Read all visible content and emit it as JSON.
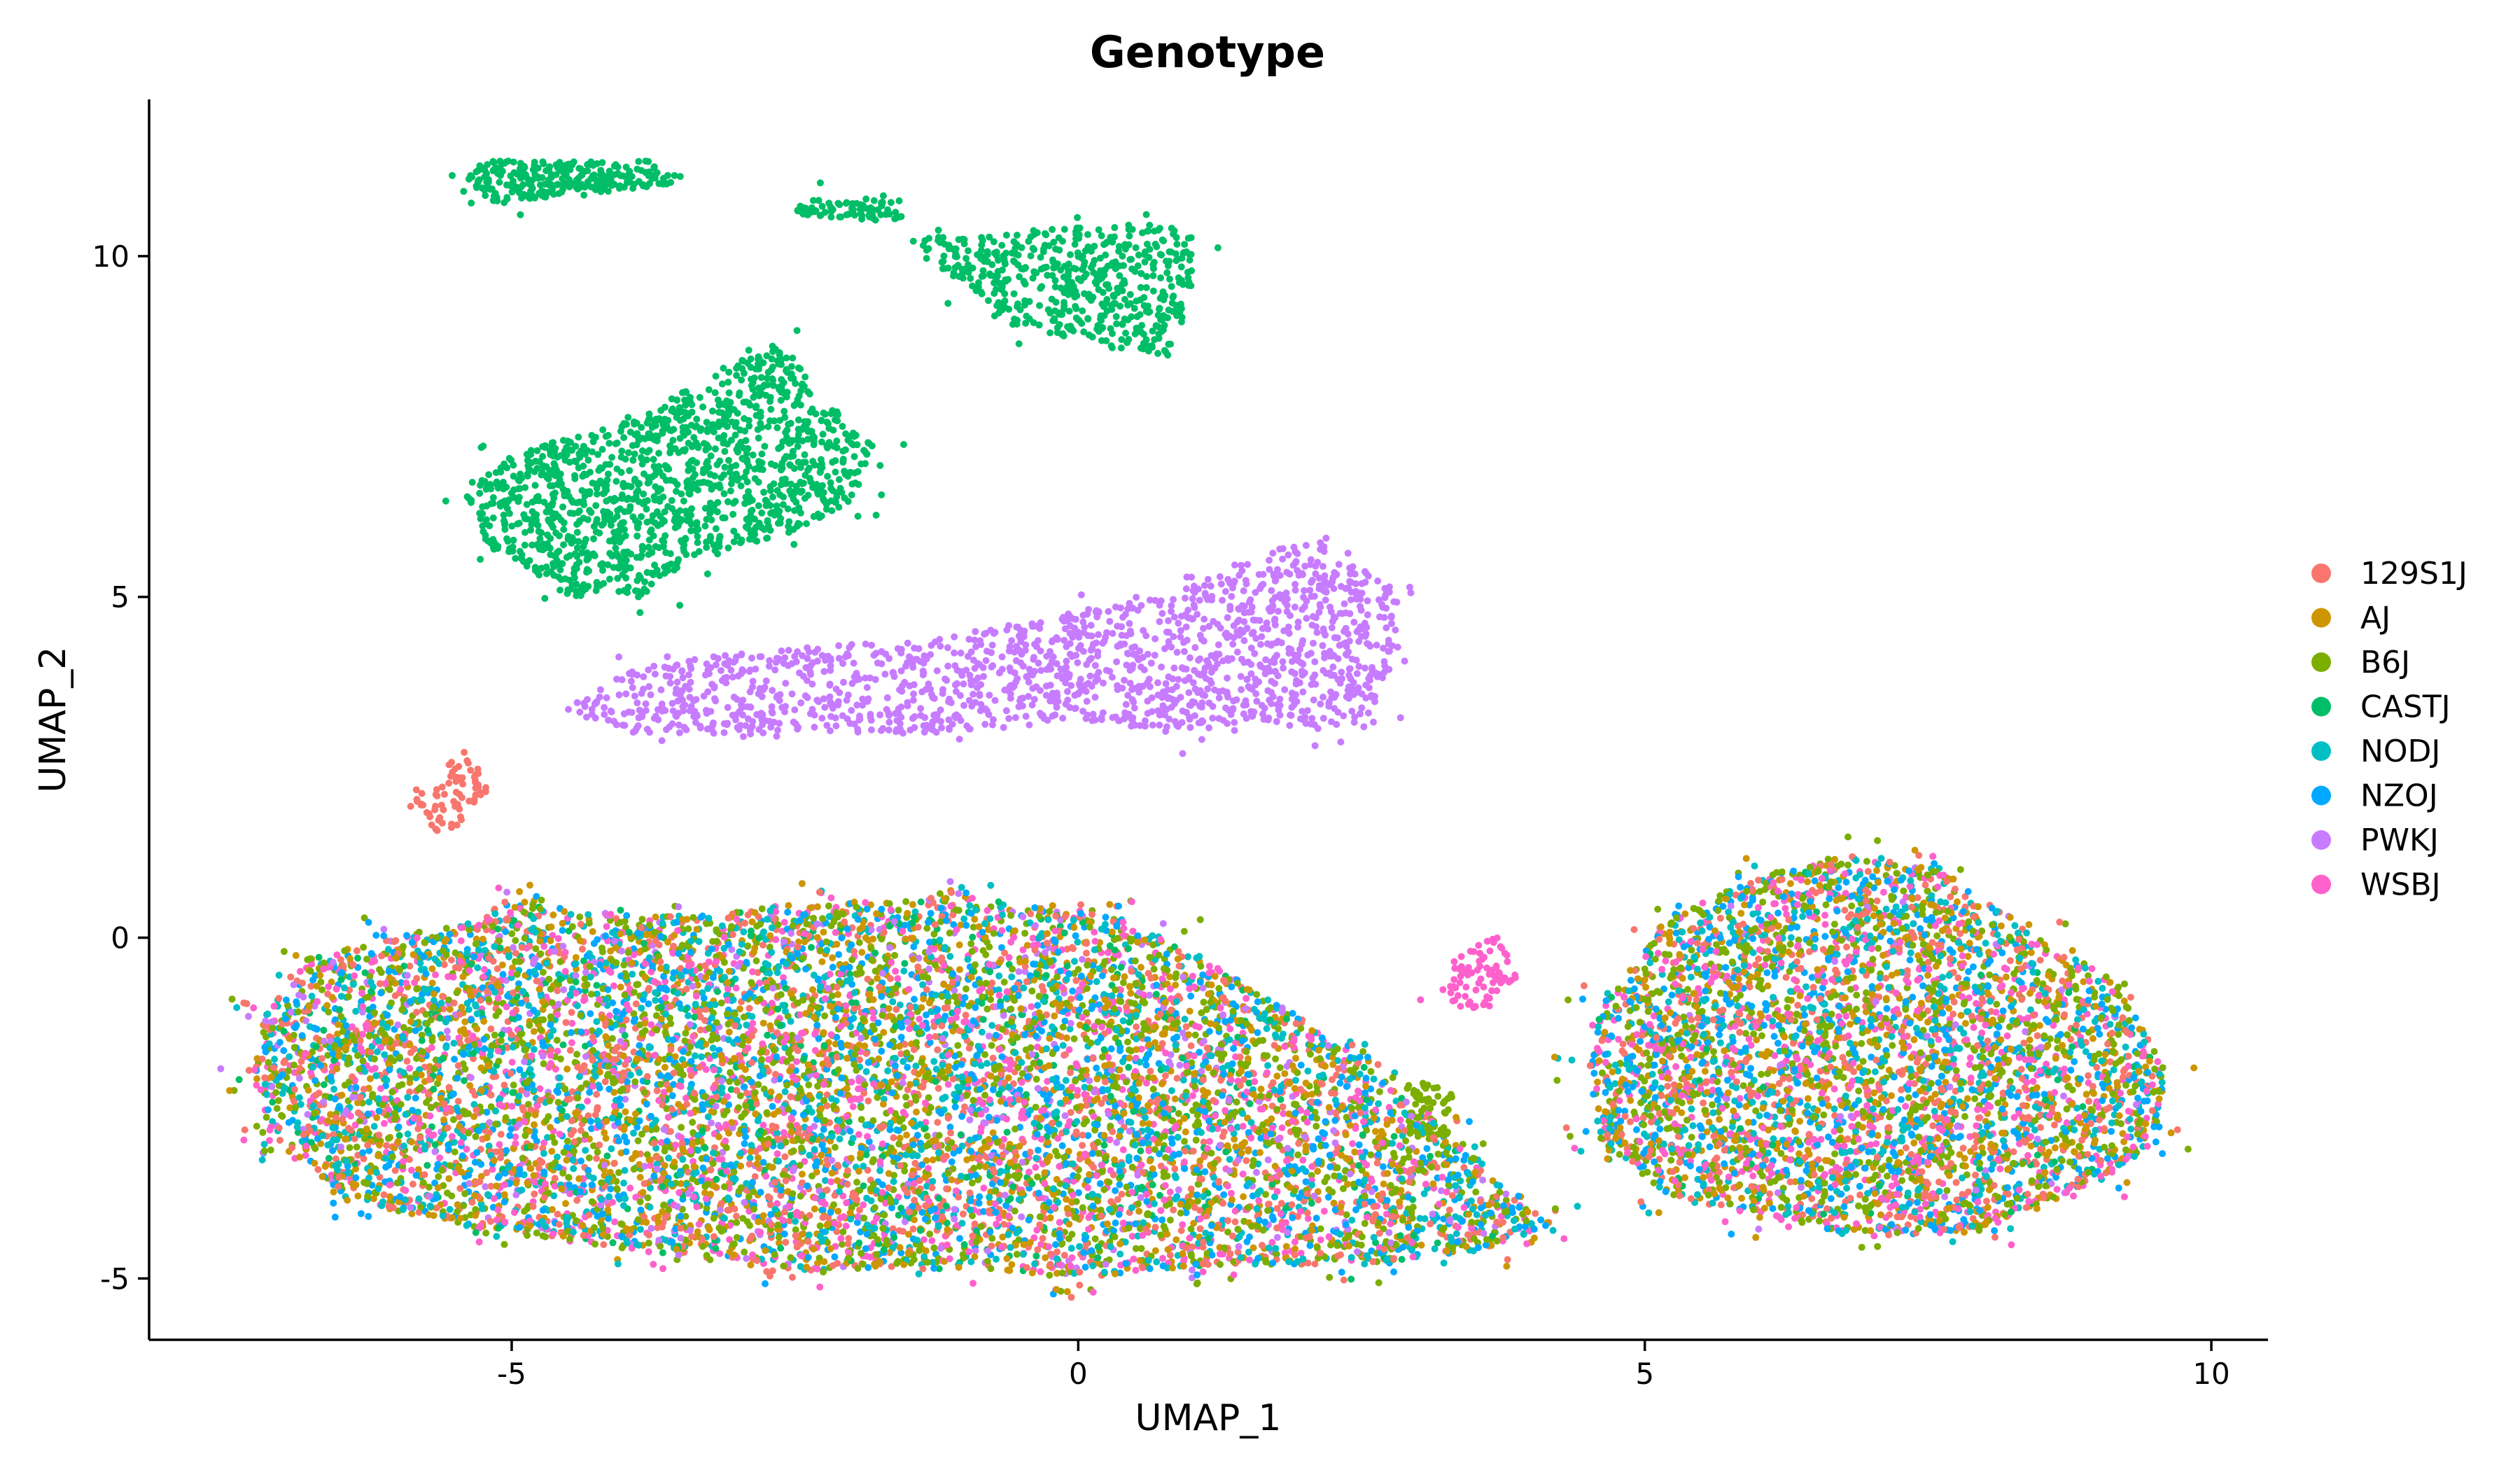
{
  "chart_data": {
    "type": "scatter",
    "title": "Genotype",
    "xlabel": "UMAP_1",
    "ylabel": "UMAP_2",
    "xlim": [
      -8.2,
      10.5
    ],
    "ylim": [
      -5.9,
      12.3
    ],
    "xticks": [
      -5,
      0,
      5,
      10
    ],
    "xtick_labels": [
      "-5",
      "0",
      "5",
      "10"
    ],
    "yticks": [
      -5,
      0,
      5,
      10
    ],
    "ytick_labels": [
      "-5",
      "0",
      "5",
      "10"
    ],
    "grid": false,
    "legend_position": "right",
    "series": [
      {
        "name": "129S1J",
        "color": "#F8766D"
      },
      {
        "name": "AJ",
        "color": "#CD9600"
      },
      {
        "name": "B6J",
        "color": "#7CAE00"
      },
      {
        "name": "CASTJ",
        "color": "#00BE67"
      },
      {
        "name": "NODJ",
        "color": "#00BFC4"
      },
      {
        "name": "NZOJ",
        "color": "#00A9FF"
      },
      {
        "name": "PWKJ",
        "color": "#C77CFF"
      },
      {
        "name": "WSBJ",
        "color": "#FF61CC"
      }
    ],
    "clusters": [
      {
        "series": "CASTJ",
        "polygon": [
          [
            -5.3,
            11.4
          ],
          [
            -3.8,
            11.4
          ],
          [
            -3.4,
            11.1
          ],
          [
            -4.4,
            10.9
          ],
          [
            -5.2,
            10.8
          ],
          [
            -5.4,
            11.1
          ]
        ],
        "n": 260
      },
      {
        "series": "CASTJ",
        "polygon": [
          [
            -2.5,
            10.8
          ],
          [
            -1.6,
            10.9
          ],
          [
            -1.5,
            10.5
          ],
          [
            -2.5,
            10.6
          ]
        ],
        "n": 80
      },
      {
        "series": "CASTJ",
        "polygon": [
          [
            -1.4,
            10.3
          ],
          [
            -0.2,
            10.4
          ],
          [
            0.6,
            10.5
          ],
          [
            1.0,
            10.3
          ],
          [
            1.0,
            9.4
          ],
          [
            0.8,
            8.5
          ],
          [
            0.2,
            8.7
          ],
          [
            -0.6,
            9.0
          ],
          [
            -1.0,
            9.6
          ],
          [
            -1.4,
            10.0
          ]
        ],
        "n": 520
      },
      {
        "series": "CASTJ",
        "polygon": [
          [
            -5.4,
            6.5
          ],
          [
            -5.0,
            7.1
          ],
          [
            -3.9,
            7.6
          ],
          [
            -3.1,
            8.4
          ],
          [
            -2.6,
            8.7
          ],
          [
            -2.3,
            8.0
          ],
          [
            -1.8,
            7.2
          ],
          [
            -2.0,
            6.4
          ],
          [
            -2.6,
            5.9
          ],
          [
            -3.4,
            5.6
          ],
          [
            -3.8,
            5.0
          ],
          [
            -4.5,
            5.0
          ],
          [
            -5.3,
            5.8
          ]
        ],
        "n": 1300
      },
      {
        "series": "PWKJ",
        "polygon": [
          [
            -4.5,
            3.3
          ],
          [
            -4.0,
            3.9
          ],
          [
            -3.4,
            4.1
          ],
          [
            -2.2,
            4.3
          ],
          [
            -1.2,
            4.4
          ],
          [
            0.0,
            4.8
          ],
          [
            0.8,
            5.0
          ],
          [
            1.5,
            5.6
          ],
          [
            2.2,
            5.9
          ],
          [
            2.8,
            5.1
          ],
          [
            2.8,
            4.2
          ],
          [
            2.7,
            3.3
          ],
          [
            2.2,
            3.0
          ],
          [
            1.6,
            3.2
          ],
          [
            0.9,
            3.0
          ],
          [
            0.0,
            3.2
          ],
          [
            -1.0,
            3.0
          ],
          [
            -2.0,
            3.0
          ],
          [
            -3.0,
            2.9
          ],
          [
            -3.9,
            3.0
          ]
        ],
        "n": 1500
      },
      {
        "series": "WSBJ",
        "polygon": [
          [
            3.3,
            -0.2
          ],
          [
            3.7,
            0.0
          ],
          [
            3.9,
            -0.6
          ],
          [
            3.5,
            -1.2
          ],
          [
            3.2,
            -0.8
          ]
        ],
        "n": 80
      },
      {
        "series": "B6J",
        "polygon": [
          [
            2.9,
            -2.1
          ],
          [
            3.3,
            -2.2
          ],
          [
            3.3,
            -2.9
          ],
          [
            2.9,
            -2.9
          ]
        ],
        "n": 60
      },
      {
        "series": "mixed",
        "polygon": [
          [
            -7.2,
            -1.2
          ],
          [
            -6.8,
            -0.3
          ],
          [
            -6.0,
            0.0
          ],
          [
            -5.0,
            0.5
          ],
          [
            -3.8,
            0.3
          ],
          [
            -2.4,
            0.5
          ],
          [
            -1.0,
            0.6
          ],
          [
            0.2,
            0.4
          ],
          [
            0.8,
            0.0
          ],
          [
            1.8,
            -1.0
          ],
          [
            2.5,
            -1.8
          ],
          [
            3.2,
            -2.8
          ],
          [
            4.2,
            -4.2
          ],
          [
            3.5,
            -4.6
          ],
          [
            2.5,
            -4.8
          ],
          [
            1.2,
            -4.8
          ],
          [
            0.0,
            -5.0
          ],
          [
            -1.2,
            -4.8
          ],
          [
            -2.5,
            -4.9
          ],
          [
            -3.8,
            -4.6
          ],
          [
            -5.2,
            -4.3
          ],
          [
            -6.4,
            -3.9
          ],
          [
            -7.1,
            -3.0
          ],
          [
            -7.3,
            -2.0
          ]
        ],
        "n": 9000,
        "weights": {
          "129S1J": 0.16,
          "AJ": 0.14,
          "B6J": 0.2,
          "NODJ": 0.14,
          "NZOJ": 0.13,
          "WSBJ": 0.13,
          "CASTJ": 0.05,
          "PWKJ": 0.05
        }
      },
      {
        "series": "mixed",
        "polygon": [
          [
            4.6,
            -1.0
          ],
          [
            5.2,
            0.3
          ],
          [
            6.0,
            0.9
          ],
          [
            6.8,
            1.2
          ],
          [
            7.6,
            1.0
          ],
          [
            8.5,
            0.0
          ],
          [
            9.2,
            -0.7
          ],
          [
            9.6,
            -2.0
          ],
          [
            9.5,
            -3.0
          ],
          [
            9.0,
            -3.6
          ],
          [
            8.0,
            -4.3
          ],
          [
            7.0,
            -4.4
          ],
          [
            6.0,
            -4.1
          ],
          [
            5.2,
            -3.8
          ],
          [
            4.6,
            -3.0
          ],
          [
            4.5,
            -2.0
          ]
        ],
        "n": 4200,
        "weights": {
          "129S1J": 0.15,
          "AJ": 0.15,
          "B6J": 0.22,
          "NODJ": 0.14,
          "NZOJ": 0.16,
          "WSBJ": 0.15,
          "CASTJ": 0.015,
          "PWKJ": 0.015
        }
      },
      {
        "series": "129S1J",
        "polygon": [
          [
            -5.9,
            2.1
          ],
          [
            -5.4,
            2.8
          ],
          [
            -5.2,
            2.2
          ],
          [
            -5.6,
            1.4
          ]
        ],
        "n": 70
      }
    ]
  }
}
